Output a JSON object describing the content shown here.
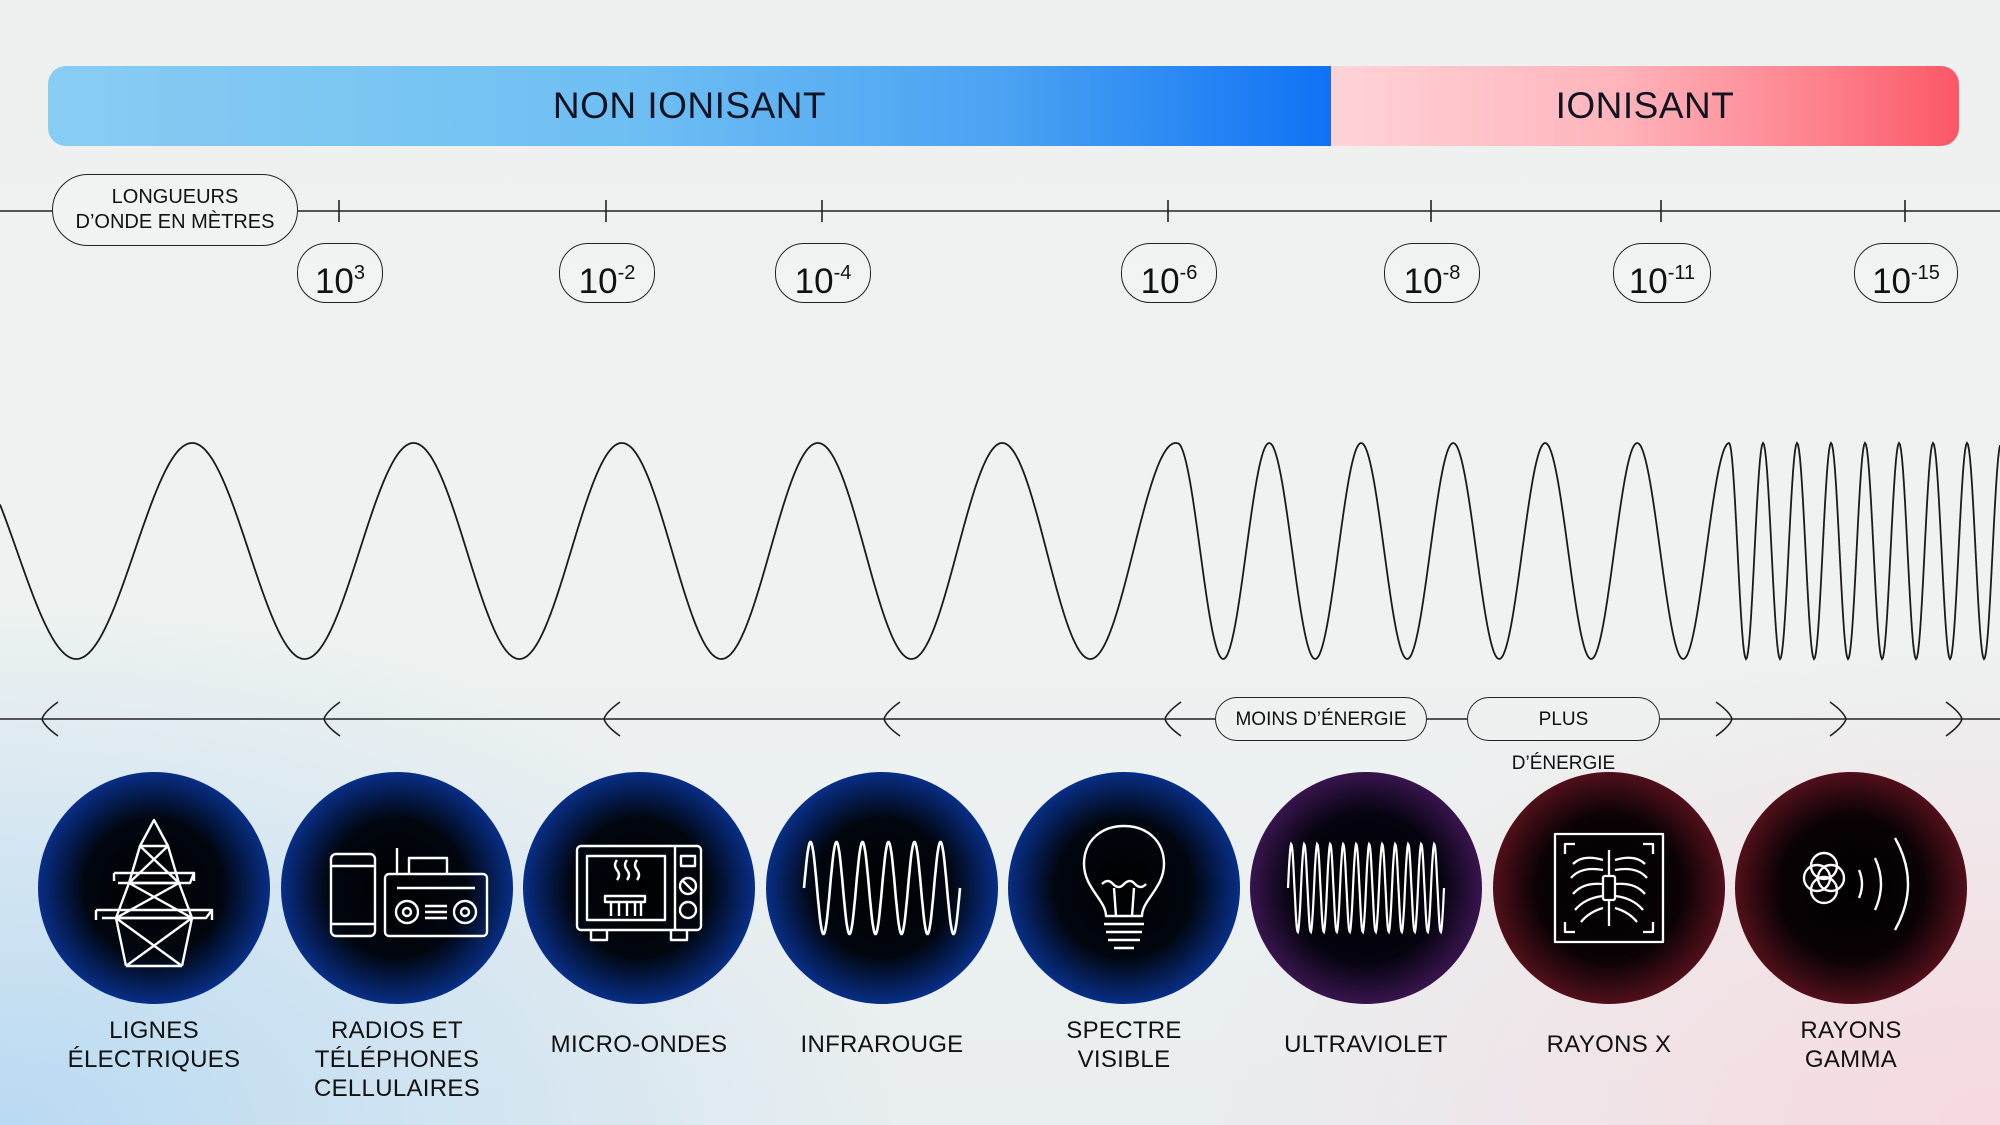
{
  "ionization_bar": {
    "non_ionizing_label": "NON IONISANT",
    "ionizing_label": "IONISANT",
    "colors": {
      "non_ionizing": "#0f72f5",
      "ionizing": "#fb5766"
    }
  },
  "scale": {
    "wavelength_label_line1": "LONGUEURS",
    "wavelength_label_line2": "D’ONDE EN MÈTRES",
    "ticks": [
      {
        "base": "10",
        "exponent": "3"
      },
      {
        "base": "10",
        "exponent": "-2"
      },
      {
        "base": "10",
        "exponent": "-4"
      },
      {
        "base": "10",
        "exponent": "-6"
      },
      {
        "base": "10",
        "exponent": "-8"
      },
      {
        "base": "10",
        "exponent": "-11"
      },
      {
        "base": "10",
        "exponent": "-15"
      }
    ]
  },
  "energy": {
    "less_label": "MOINS D’ÉNERGIE",
    "more_label": "PLUS D’ÉNERGIE"
  },
  "categories": [
    {
      "line1": "LIGNES",
      "line2": "ÉLECTRIQUES",
      "line3": "",
      "icon": "power-tower-icon",
      "tone": "blue"
    },
    {
      "line1": "RADIOS ET",
      "line2": "TÉLÉPHONES",
      "line3": "CELLULAIRES",
      "icon": "radio-phone-icon",
      "tone": "blue"
    },
    {
      "line1": "MICRO-ONDES",
      "line2": "",
      "line3": "",
      "icon": "microwave-icon",
      "tone": "blue"
    },
    {
      "line1": "INFRAROUGE",
      "line2": "",
      "line3": "",
      "icon": "infrared-wave-icon",
      "tone": "blue"
    },
    {
      "line1": "SPECTRE",
      "line2": "VISIBLE",
      "line3": "",
      "icon": "light-bulb-icon",
      "tone": "blue"
    },
    {
      "line1": "ULTRAVIOLET",
      "line2": "",
      "line3": "",
      "icon": "ultraviolet-wave-icon",
      "tone": "mixed"
    },
    {
      "line1": "RAYONS X",
      "line2": "",
      "line3": "",
      "icon": "xray-icon",
      "tone": "red"
    },
    {
      "line1": "RAYONS",
      "line2": "GAMMA",
      "line3": "",
      "icon": "gamma-icon",
      "tone": "red"
    }
  ]
}
